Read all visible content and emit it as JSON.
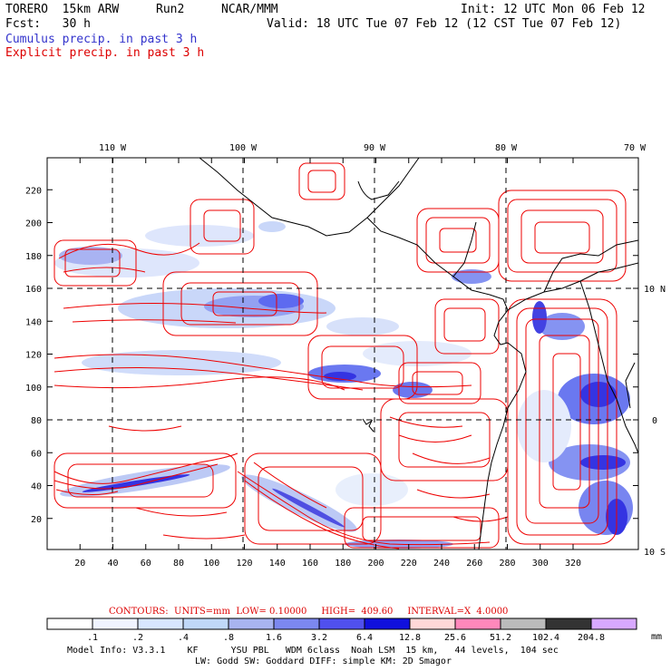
{
  "header": {
    "model": "TORERO  15km ARW",
    "run": "Run2",
    "org": "NCAR/MMM",
    "init": "Init: 12 UTC Mon 06 Feb 12",
    "fcst": "Fcst:   30 h",
    "valid": "Valid: 18 UTC Tue 07 Feb 12 (12 CST Tue 07 Feb 12)",
    "field1": "Cumulus precip. in past 3 h",
    "field2": "Explicit precip. in past 3 h"
  },
  "map": {
    "lon_labels": [
      "110 W",
      "100 W",
      "90 W",
      "80 W",
      "70 W"
    ],
    "lat_labels": [
      "10 N",
      "0",
      "10 S"
    ],
    "x_ticks": [
      "20",
      "40",
      "60",
      "80",
      "100",
      "120",
      "140",
      "160",
      "180",
      "200",
      "220",
      "240",
      "260",
      "280",
      "300",
      "320"
    ],
    "y_ticks": [
      "20",
      "40",
      "60",
      "80",
      "100",
      "120",
      "140",
      "160",
      "180",
      "200",
      "220"
    ],
    "colors": {
      "explicit_contour": "#ee0000",
      "coastline": "#000000"
    }
  },
  "contour_info": {
    "label": "CONTOURS:",
    "units": "UNITS=mm",
    "low": "LOW= 0.10000",
    "high": "HIGH=  409.60",
    "interval": "INTERVAL=X  4.0000"
  },
  "colorbar": {
    "labels": [
      ".1",
      ".2",
      ".4",
      ".8",
      "1.6",
      "3.2",
      "6.4",
      "12.8",
      "25.6",
      "51.2",
      "102.4",
      "204.8"
    ],
    "units": "mm",
    "colors": [
      "#ffffff",
      "#f0f4ff",
      "#d8e6ff",
      "#c0d8f8",
      "#a8b4f0",
      "#7c88f0",
      "#5050ee",
      "#1010dd",
      "#ffd8d8",
      "#ff88bb",
      "#bbbbbb",
      "#333333",
      "#d8a8ff"
    ]
  },
  "footer": {
    "line1": "Model Info: V3.3.1    KF      YSU PBL   WDM 6class  Noah LSM  15 km,   44 levels,  104 sec",
    "line2": "LW: Godd SW: Goddard DIFF: simple KM: 2D Smagor"
  }
}
